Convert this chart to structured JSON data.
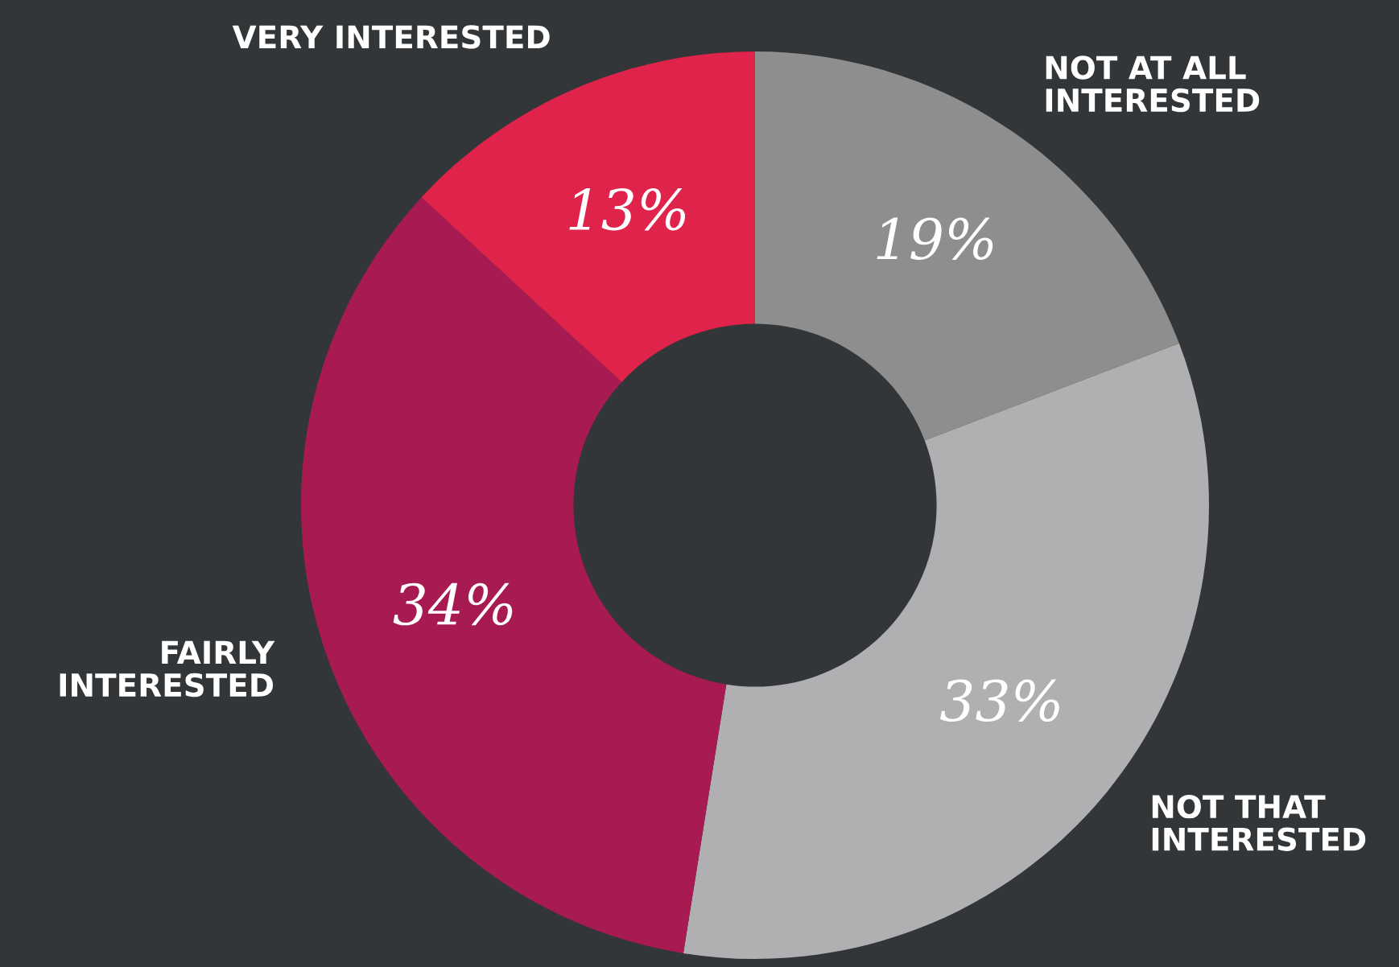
{
  "chart_data": {
    "type": "donut",
    "categories": [
      "NOT AT ALL\nINTERESTED",
      "NOT THAT\nINTERESTED",
      "FAIRLY\nINTERESTED",
      "VERY INTERESTED"
    ],
    "values": [
      19,
      33,
      34,
      13
    ],
    "colors": [
      "#8e8e8e",
      "#b0b0b2",
      "#a81a52",
      "#e0234a"
    ],
    "value_labels": [
      "19%",
      "33%",
      "34%",
      "13%"
    ]
  }
}
